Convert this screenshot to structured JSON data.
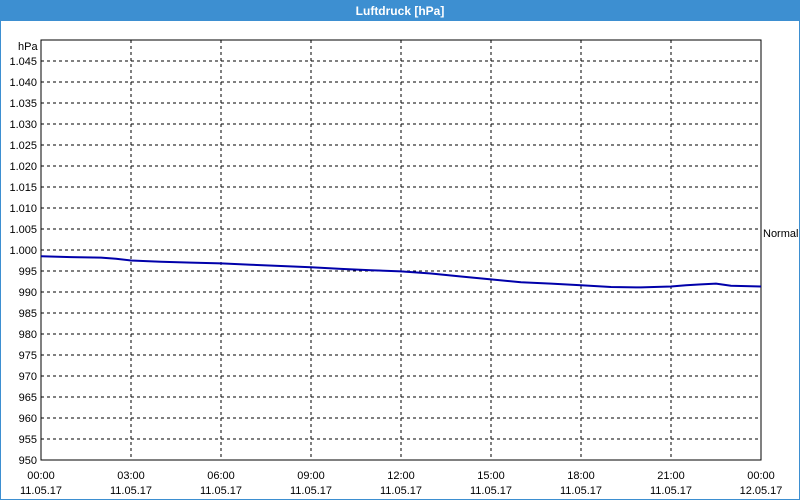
{
  "window": {
    "title": "Luftdruck [hPa]"
  },
  "chart_data": {
    "type": "line",
    "title": "Luftdruck [hPa]",
    "ylabel": "hPa",
    "ylim": [
      950,
      1050
    ],
    "yticks": [
      "950",
      "955",
      "960",
      "965",
      "970",
      "975",
      "980",
      "985",
      "990",
      "995",
      "1.000",
      "1.005",
      "1.010",
      "1.015",
      "1.020",
      "1.025",
      "1.030",
      "1.035",
      "1.040",
      "1.045"
    ],
    "xticks": [
      {
        "time": "00:00",
        "date": "11.05.17"
      },
      {
        "time": "03:00",
        "date": "11.05.17"
      },
      {
        "time": "06:00",
        "date": "11.05.17"
      },
      {
        "time": "09:00",
        "date": "11.05.17"
      },
      {
        "time": "12:00",
        "date": "11.05.17"
      },
      {
        "time": "15:00",
        "date": "11.05.17"
      },
      {
        "time": "18:00",
        "date": "11.05.17"
      },
      {
        "time": "21:00",
        "date": "11.05.17"
      },
      {
        "time": "00:00",
        "date": "12.05.17"
      }
    ],
    "xlim_hours": [
      0,
      24
    ],
    "reference_label": "Normal",
    "reference_value": 1003.5,
    "grid": true,
    "series": [
      {
        "color": "#0000aa",
        "x": [
          0,
          1,
          2,
          2.5,
          3,
          4,
          5,
          6,
          7,
          8,
          9,
          10,
          11,
          12,
          13,
          14,
          15,
          16,
          17,
          18,
          19,
          20,
          21,
          21.5,
          22,
          22.5,
          23,
          24
        ],
        "values": [
          998.5,
          998.3,
          998.2,
          997.9,
          997.5,
          997.2,
          997.0,
          996.8,
          996.5,
          996.2,
          995.9,
          995.5,
          995.2,
          994.9,
          994.4,
          993.7,
          993.0,
          992.3,
          992.0,
          991.6,
          991.2,
          991.1,
          991.3,
          991.6,
          991.8,
          992.0,
          991.5,
          991.3
        ]
      }
    ]
  }
}
